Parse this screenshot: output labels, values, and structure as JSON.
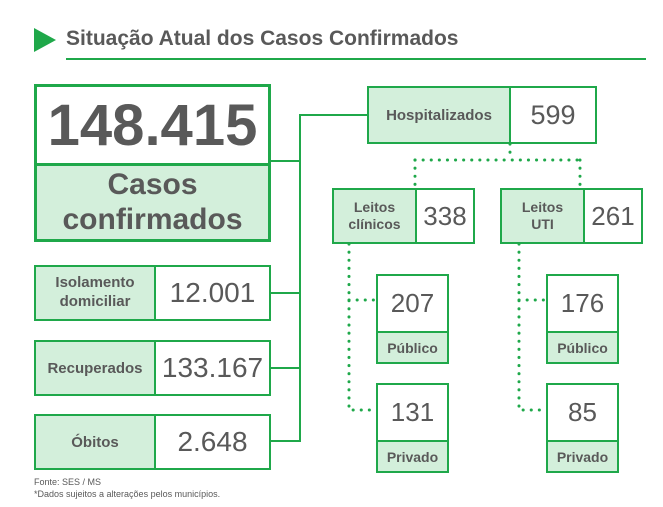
{
  "header": {
    "title": "Situação Atual dos Casos Confirmados"
  },
  "total": {
    "value": "148.415",
    "label_line1": "Casos",
    "label_line2": "confirmados"
  },
  "isolamento": {
    "label_line1": "Isolamento",
    "label_line2": "domiciliar",
    "value": "12.001"
  },
  "recuperados": {
    "label": "Recuperados",
    "value": "133.167"
  },
  "obitos": {
    "label": "Óbitos",
    "value": "2.648"
  },
  "hospitalizados": {
    "label": "Hospitalizados",
    "value": "599"
  },
  "leitos_clinicos": {
    "label_line1": "Leitos",
    "label_line2": "clínicos",
    "value": "338",
    "publico": {
      "value": "207",
      "label": "Público"
    },
    "privado": {
      "value": "131",
      "label": "Privado"
    }
  },
  "leitos_uti": {
    "label_line1": "Leitos",
    "label_line2": "UTI",
    "value": "261",
    "publico": {
      "value": "176",
      "label": "Público"
    },
    "privado": {
      "value": "85",
      "label": "Privado"
    }
  },
  "footer": {
    "source": "Fonte: SES / MS",
    "note": "*Dados sujeitos a alterações pelos municípios."
  },
  "colors": {
    "accent": "#1fa84a",
    "fill": "#d3efdb",
    "text": "#595959"
  }
}
